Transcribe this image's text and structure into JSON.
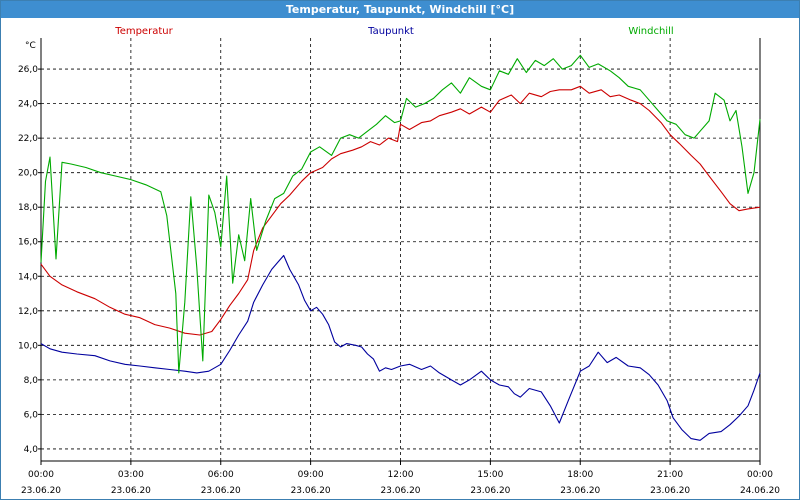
{
  "window": {
    "title": "Temperatur, Taupunkt, Windchill [°C]"
  },
  "chart_data": {
    "type": "line",
    "title": "Temperatur, Taupunkt, Windchill [°C]",
    "ylabel": "°C",
    "xlabel": "",
    "ylim": [
      3.3,
      27.8
    ],
    "xlim": [
      0,
      24
    ],
    "grid": true,
    "legend_position": "top",
    "y_ticks": [
      "4,0",
      "6,0",
      "8,0",
      "10,0",
      "12,0",
      "14,0",
      "16,0",
      "18,0",
      "20,0",
      "22,0",
      "24,0",
      "26,0"
    ],
    "x_ticks": [
      {
        "x": 0,
        "time": "00:00",
        "date": "23.06.20"
      },
      {
        "x": 3,
        "time": "03:00",
        "date": "23.06.20"
      },
      {
        "x": 6,
        "time": "06:00",
        "date": "23.06.20"
      },
      {
        "x": 9,
        "time": "09:00",
        "date": "23.06.20"
      },
      {
        "x": 12,
        "time": "12:00",
        "date": "23.06.20"
      },
      {
        "x": 15,
        "time": "15:00",
        "date": "23.06.20"
      },
      {
        "x": 18,
        "time": "18:00",
        "date": "23.06.20"
      },
      {
        "x": 21,
        "time": "21:00",
        "date": "23.06.20"
      },
      {
        "x": 24,
        "time": "00:00",
        "date": "24.06.20"
      }
    ],
    "series": [
      {
        "name": "Temperatur",
        "color": "#cc0000",
        "points": [
          [
            0,
            14.7
          ],
          [
            0.3,
            14.0
          ],
          [
            0.7,
            13.5
          ],
          [
            1.2,
            13.1
          ],
          [
            1.8,
            12.7
          ],
          [
            2.3,
            12.2
          ],
          [
            2.8,
            11.8
          ],
          [
            3.3,
            11.6
          ],
          [
            3.8,
            11.2
          ],
          [
            4.3,
            11.0
          ],
          [
            4.8,
            10.7
          ],
          [
            5.3,
            10.6
          ],
          [
            5.7,
            10.8
          ],
          [
            6.0,
            11.5
          ],
          [
            6.3,
            12.3
          ],
          [
            6.6,
            13.0
          ],
          [
            6.9,
            13.8
          ],
          [
            7.1,
            15.5
          ],
          [
            7.4,
            16.8
          ],
          [
            7.7,
            17.5
          ],
          [
            8.0,
            18.2
          ],
          [
            8.3,
            18.7
          ],
          [
            8.7,
            19.5
          ],
          [
            9.0,
            20.0
          ],
          [
            9.4,
            20.3
          ],
          [
            9.7,
            20.8
          ],
          [
            10.0,
            21.1
          ],
          [
            10.4,
            21.3
          ],
          [
            10.7,
            21.5
          ],
          [
            11.0,
            21.8
          ],
          [
            11.3,
            21.6
          ],
          [
            11.6,
            22.0
          ],
          [
            11.9,
            21.8
          ],
          [
            12.0,
            22.8
          ],
          [
            12.3,
            22.5
          ],
          [
            12.7,
            22.9
          ],
          [
            13.0,
            23.0
          ],
          [
            13.3,
            23.3
          ],
          [
            13.7,
            23.5
          ],
          [
            14.0,
            23.7
          ],
          [
            14.3,
            23.4
          ],
          [
            14.7,
            23.8
          ],
          [
            15.0,
            23.5
          ],
          [
            15.3,
            24.2
          ],
          [
            15.7,
            24.5
          ],
          [
            16.0,
            24.0
          ],
          [
            16.3,
            24.6
          ],
          [
            16.7,
            24.4
          ],
          [
            17.0,
            24.7
          ],
          [
            17.3,
            24.8
          ],
          [
            17.7,
            24.8
          ],
          [
            18.0,
            25.0
          ],
          [
            18.3,
            24.6
          ],
          [
            18.7,
            24.8
          ],
          [
            19.0,
            24.4
          ],
          [
            19.3,
            24.5
          ],
          [
            19.7,
            24.2
          ],
          [
            20.0,
            24.0
          ],
          [
            20.3,
            23.6
          ],
          [
            20.7,
            22.9
          ],
          [
            21.0,
            22.2
          ],
          [
            21.3,
            21.7
          ],
          [
            21.7,
            21.0
          ],
          [
            22.0,
            20.5
          ],
          [
            22.3,
            19.8
          ],
          [
            22.7,
            18.9
          ],
          [
            23.0,
            18.2
          ],
          [
            23.3,
            17.8
          ],
          [
            23.6,
            17.9
          ],
          [
            24.0,
            18.0
          ]
        ]
      },
      {
        "name": "Taupunkt",
        "color": "#00009e",
        "points": [
          [
            0,
            10.1
          ],
          [
            0.3,
            9.8
          ],
          [
            0.7,
            9.6
          ],
          [
            1.2,
            9.5
          ],
          [
            1.8,
            9.4
          ],
          [
            2.3,
            9.1
          ],
          [
            2.8,
            8.9
          ],
          [
            3.3,
            8.8
          ],
          [
            3.8,
            8.7
          ],
          [
            4.3,
            8.6
          ],
          [
            4.8,
            8.5
          ],
          [
            5.2,
            8.4
          ],
          [
            5.6,
            8.5
          ],
          [
            6.0,
            8.9
          ],
          [
            6.3,
            9.7
          ],
          [
            6.6,
            10.6
          ],
          [
            6.9,
            11.4
          ],
          [
            7.1,
            12.5
          ],
          [
            7.4,
            13.5
          ],
          [
            7.7,
            14.4
          ],
          [
            7.9,
            14.8
          ],
          [
            8.1,
            15.2
          ],
          [
            8.3,
            14.4
          ],
          [
            8.6,
            13.5
          ],
          [
            8.8,
            12.6
          ],
          [
            9.0,
            12.0
          ],
          [
            9.2,
            12.2
          ],
          [
            9.4,
            11.8
          ],
          [
            9.6,
            11.2
          ],
          [
            9.8,
            10.2
          ],
          [
            10.0,
            9.9
          ],
          [
            10.2,
            10.1
          ],
          [
            10.5,
            10.0
          ],
          [
            10.7,
            9.9
          ],
          [
            10.9,
            9.5
          ],
          [
            11.1,
            9.2
          ],
          [
            11.3,
            8.5
          ],
          [
            11.5,
            8.7
          ],
          [
            11.7,
            8.6
          ],
          [
            12.0,
            8.8
          ],
          [
            12.3,
            8.9
          ],
          [
            12.7,
            8.6
          ],
          [
            13.0,
            8.8
          ],
          [
            13.3,
            8.4
          ],
          [
            13.7,
            8.0
          ],
          [
            14.0,
            7.7
          ],
          [
            14.3,
            8.0
          ],
          [
            14.7,
            8.5
          ],
          [
            15.0,
            8.0
          ],
          [
            15.3,
            7.7
          ],
          [
            15.6,
            7.6
          ],
          [
            15.8,
            7.2
          ],
          [
            16.0,
            7.0
          ],
          [
            16.3,
            7.5
          ],
          [
            16.7,
            7.3
          ],
          [
            17.0,
            6.5
          ],
          [
            17.3,
            5.5
          ],
          [
            17.6,
            6.8
          ],
          [
            18.0,
            8.5
          ],
          [
            18.3,
            8.8
          ],
          [
            18.6,
            9.6
          ],
          [
            18.9,
            9.0
          ],
          [
            19.2,
            9.3
          ],
          [
            19.6,
            8.8
          ],
          [
            20.0,
            8.7
          ],
          [
            20.3,
            8.3
          ],
          [
            20.6,
            7.7
          ],
          [
            20.9,
            6.8
          ],
          [
            21.1,
            5.8
          ],
          [
            21.4,
            5.1
          ],
          [
            21.7,
            4.6
          ],
          [
            22.0,
            4.5
          ],
          [
            22.3,
            4.9
          ],
          [
            22.7,
            5.0
          ],
          [
            23.0,
            5.4
          ],
          [
            23.3,
            5.9
          ],
          [
            23.6,
            6.5
          ],
          [
            23.8,
            7.4
          ],
          [
            24.0,
            8.4
          ]
        ]
      },
      {
        "name": "Windchill",
        "color": "#00aa00",
        "points": [
          [
            0,
            14.8
          ],
          [
            0.15,
            19.5
          ],
          [
            0.3,
            20.9
          ],
          [
            0.5,
            15.0
          ],
          [
            0.7,
            20.6
          ],
          [
            1.0,
            20.5
          ],
          [
            1.5,
            20.3
          ],
          [
            2.0,
            20.0
          ],
          [
            2.5,
            19.8
          ],
          [
            3.0,
            19.6
          ],
          [
            3.5,
            19.3
          ],
          [
            4.0,
            18.9
          ],
          [
            4.2,
            17.5
          ],
          [
            4.5,
            13.0
          ],
          [
            4.6,
            8.4
          ],
          [
            4.8,
            12.5
          ],
          [
            5.0,
            18.6
          ],
          [
            5.2,
            14.5
          ],
          [
            5.4,
            9.1
          ],
          [
            5.6,
            18.7
          ],
          [
            5.8,
            17.7
          ],
          [
            6.0,
            15.7
          ],
          [
            6.2,
            19.8
          ],
          [
            6.4,
            13.6
          ],
          [
            6.6,
            16.4
          ],
          [
            6.8,
            14.9
          ],
          [
            7.0,
            18.5
          ],
          [
            7.2,
            15.5
          ],
          [
            7.5,
            17.2
          ],
          [
            7.8,
            18.5
          ],
          [
            8.1,
            18.8
          ],
          [
            8.4,
            19.8
          ],
          [
            8.7,
            20.2
          ],
          [
            9.0,
            21.2
          ],
          [
            9.3,
            21.5
          ],
          [
            9.7,
            21.0
          ],
          [
            10.0,
            22.0
          ],
          [
            10.3,
            22.2
          ],
          [
            10.6,
            22.0
          ],
          [
            10.9,
            22.4
          ],
          [
            11.2,
            22.8
          ],
          [
            11.5,
            23.3
          ],
          [
            11.8,
            22.9
          ],
          [
            12.0,
            23.0
          ],
          [
            12.2,
            24.3
          ],
          [
            12.5,
            23.8
          ],
          [
            12.8,
            24.0
          ],
          [
            13.1,
            24.3
          ],
          [
            13.4,
            24.8
          ],
          [
            13.7,
            25.2
          ],
          [
            14.0,
            24.6
          ],
          [
            14.3,
            25.5
          ],
          [
            14.7,
            25.0
          ],
          [
            15.0,
            24.8
          ],
          [
            15.3,
            25.9
          ],
          [
            15.6,
            25.7
          ],
          [
            15.9,
            26.6
          ],
          [
            16.2,
            25.8
          ],
          [
            16.5,
            26.5
          ],
          [
            16.8,
            26.2
          ],
          [
            17.1,
            26.6
          ],
          [
            17.4,
            26.0
          ],
          [
            17.7,
            26.2
          ],
          [
            18.0,
            26.8
          ],
          [
            18.3,
            26.1
          ],
          [
            18.6,
            26.3
          ],
          [
            19.0,
            25.9
          ],
          [
            19.3,
            25.5
          ],
          [
            19.6,
            25.0
          ],
          [
            20.0,
            24.8
          ],
          [
            20.3,
            24.2
          ],
          [
            20.6,
            23.6
          ],
          [
            20.9,
            23.0
          ],
          [
            21.2,
            22.8
          ],
          [
            21.5,
            22.2
          ],
          [
            21.8,
            22.0
          ],
          [
            22.0,
            22.4
          ],
          [
            22.3,
            23.0
          ],
          [
            22.5,
            24.6
          ],
          [
            22.8,
            24.2
          ],
          [
            23.0,
            23.0
          ],
          [
            23.2,
            23.6
          ],
          [
            23.4,
            21.5
          ],
          [
            23.6,
            18.8
          ],
          [
            23.8,
            20.0
          ],
          [
            24.0,
            23.1
          ]
        ]
      }
    ]
  }
}
